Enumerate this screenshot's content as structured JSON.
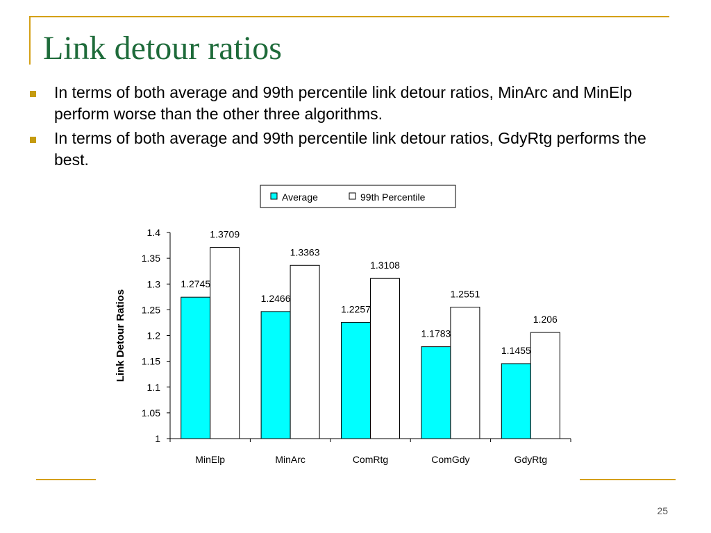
{
  "slide": {
    "title": "Link detour ratios",
    "bullets": [
      "In terms of both average and 99th percentile link detour ratios, MinArc and MinElp perform worse than the other three algorithms.",
      "In terms of both average and 99th percentile link detour ratios, GdyRtg performs the best."
    ],
    "page_number": "25"
  },
  "colors": {
    "title": "#1e6b3a",
    "accent": "#d4a017",
    "average": "#00ffff",
    "percentile": "#ffffff"
  },
  "chart_data": {
    "type": "bar",
    "categories": [
      "MinElp",
      "MinArc",
      "ComRtg",
      "ComGdy",
      "GdyRtg"
    ],
    "series": [
      {
        "name": "Average",
        "values": [
          1.2745,
          1.2466,
          1.2257,
          1.1783,
          1.1455
        ],
        "labels": [
          "1.2745",
          "1.2466",
          "1.2257",
          "1.1783",
          "1.1455"
        ],
        "color": "#00ffff"
      },
      {
        "name": "99th Percentile",
        "values": [
          1.3709,
          1.3363,
          1.3108,
          1.2551,
          1.206
        ],
        "labels": [
          "1.3709",
          "1.3363",
          "1.3108",
          "1.2551",
          "1.206"
        ],
        "color": "#ffffff"
      }
    ],
    "title": "",
    "xlabel": "",
    "ylabel": "Link Detour Ratios",
    "ylim": [
      1,
      1.4
    ],
    "yticks": [
      "1",
      "1.05",
      "1.1",
      "1.15",
      "1.2",
      "1.25",
      "1.3",
      "1.35",
      "1.4"
    ],
    "grid": false,
    "legend_position": "top"
  }
}
